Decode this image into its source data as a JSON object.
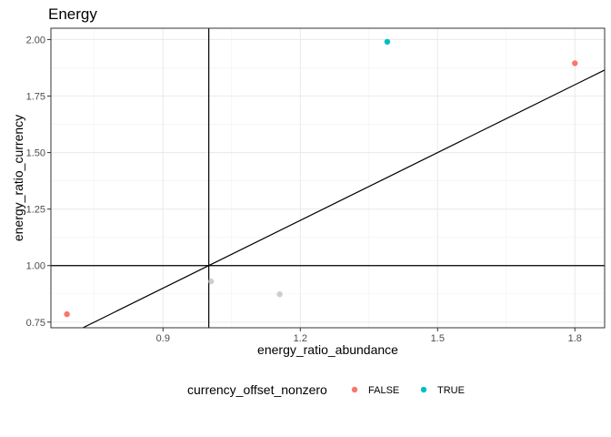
{
  "chart_data": {
    "type": "scatter",
    "title": "Energy",
    "xlabel": "energy_ratio_abundance",
    "ylabel": "energy_ratio_currency",
    "xlim": [
      0.655,
      1.865
    ],
    "ylim": [
      0.725,
      2.05
    ],
    "x_ticks": [
      0.9,
      1.2,
      1.5,
      1.8
    ],
    "x_tick_labels": [
      "0.9",
      "1.2",
      "1.5",
      "1.8"
    ],
    "y_ticks": [
      0.75,
      1.0,
      1.25,
      1.5,
      1.75,
      2.0
    ],
    "y_tick_labels": [
      "0.75",
      "1.00",
      "1.25",
      "1.50",
      "1.75",
      "2.00"
    ],
    "grid": true,
    "reference_lines": {
      "vline_x": 1.0,
      "hline_y": 1.0,
      "line_intercept": 0.0,
      "line_slope": 1.0
    },
    "legend": {
      "title": "currency_offset_nonzero",
      "position": "bottom",
      "entries": [
        {
          "label": "FALSE",
          "color": "#F8766D"
        },
        {
          "label": "TRUE",
          "color": "#00BFC4"
        }
      ]
    },
    "points": [
      {
        "x": 0.69,
        "y": 0.785,
        "group": "FALSE"
      },
      {
        "x": 1.8,
        "y": 1.895,
        "group": "FALSE"
      },
      {
        "x": 1.39,
        "y": 1.99,
        "group": "TRUE"
      },
      {
        "x": 1.005,
        "y": 0.93,
        "group": "NA"
      },
      {
        "x": 1.155,
        "y": 0.873,
        "group": "NA"
      }
    ],
    "na_color": "#BEBEBE"
  }
}
